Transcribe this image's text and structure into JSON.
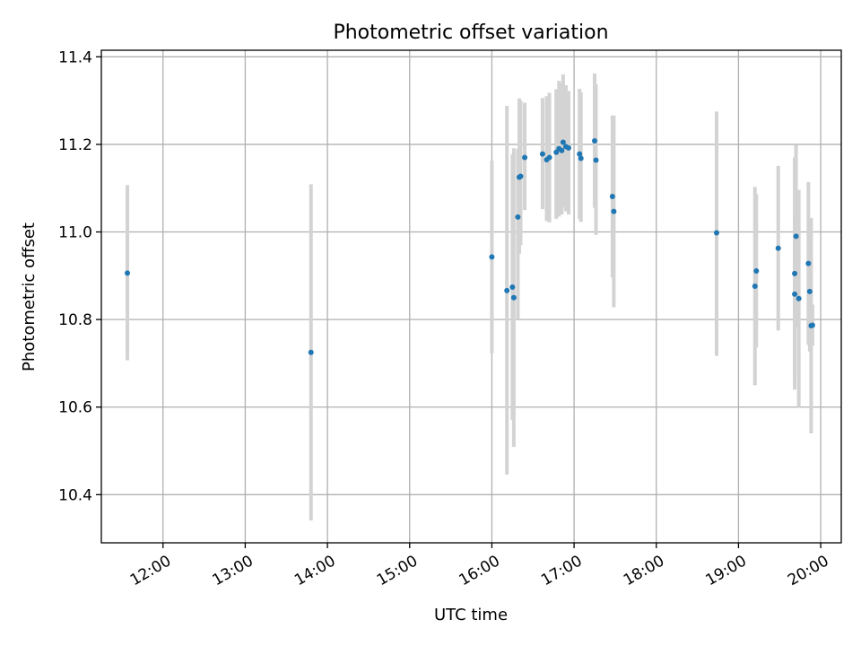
{
  "chart_data": {
    "type": "scatter",
    "title": "Photometric offset variation",
    "xlabel": "UTC time",
    "ylabel": "Photometric offset",
    "x_axis": {
      "kind": "time",
      "range": [
        "11:15",
        "20:15"
      ],
      "ticks": [
        "12:00",
        "13:00",
        "14:00",
        "15:00",
        "16:00",
        "17:00",
        "18:00",
        "19:00",
        "20:00"
      ]
    },
    "y_axis": {
      "range": [
        10.29,
        11.415
      ],
      "ticks": [
        10.4,
        10.6,
        10.8,
        11.0,
        11.2,
        11.4
      ],
      "tick_labels": [
        "10.4",
        "10.6",
        "10.8",
        "11.0",
        "11.2",
        "11.4"
      ]
    },
    "grid": true,
    "colors": {
      "marker": "#1f77b4",
      "errorbar": "#d3d3d3"
    },
    "series": [
      {
        "points": [
          {
            "t": "11:34",
            "y": 10.906,
            "lo": 10.707,
            "hi": 11.107
          },
          {
            "t": "13:48",
            "y": 10.725,
            "lo": 10.341,
            "hi": 11.109
          },
          {
            "t": "16:00",
            "y": 10.943,
            "lo": 10.723,
            "hi": 11.163
          },
          {
            "t": "16:11",
            "y": 10.866,
            "lo": 10.446,
            "hi": 11.288
          },
          {
            "t": "16:15",
            "y": 10.874,
            "lo": 10.571,
            "hi": 11.177
          },
          {
            "t": "16:16",
            "y": 10.85,
            "lo": 10.509,
            "hi": 11.191
          },
          {
            "t": "16:19",
            "y": 11.034,
            "lo": 10.8,
            "hi": 11.19
          },
          {
            "t": "16:20",
            "y": 11.125,
            "lo": 10.95,
            "hi": 11.305
          },
          {
            "t": "16:21",
            "y": 11.127,
            "lo": 10.97,
            "hi": 11.3
          },
          {
            "t": "16:24",
            "y": 11.17,
            "lo": 11.05,
            "hi": 11.295
          },
          {
            "t": "16:37",
            "y": 11.178,
            "lo": 11.052,
            "hi": 11.306
          },
          {
            "t": "16:40",
            "y": 11.165,
            "lo": 11.025,
            "hi": 11.31
          },
          {
            "t": "16:42",
            "y": 11.17,
            "lo": 11.022,
            "hi": 11.318
          },
          {
            "t": "16:47",
            "y": 11.182,
            "lo": 11.03,
            "hi": 11.326
          },
          {
            "t": "16:49",
            "y": 11.19,
            "lo": 11.035,
            "hi": 11.345
          },
          {
            "t": "16:51",
            "y": 11.186,
            "lo": 11.04,
            "hi": 11.34
          },
          {
            "t": "16:52",
            "y": 11.205,
            "lo": 11.058,
            "hi": 11.36
          },
          {
            "t": "16:54",
            "y": 11.195,
            "lo": 11.047,
            "hi": 11.335
          },
          {
            "t": "16:56",
            "y": 11.192,
            "lo": 11.04,
            "hi": 11.322
          },
          {
            "t": "17:04",
            "y": 11.178,
            "lo": 11.03,
            "hi": 11.327
          },
          {
            "t": "17:05",
            "y": 11.168,
            "lo": 11.023,
            "hi": 11.319
          },
          {
            "t": "17:15",
            "y": 11.208,
            "lo": 11.055,
            "hi": 11.362
          },
          {
            "t": "17:16",
            "y": 11.164,
            "lo": 10.993,
            "hi": 11.337
          },
          {
            "t": "17:28",
            "y": 11.081,
            "lo": 10.896,
            "hi": 11.266
          },
          {
            "t": "17:29",
            "y": 11.047,
            "lo": 10.828,
            "hi": 11.266
          },
          {
            "t": "18:44",
            "y": 10.998,
            "lo": 10.717,
            "hi": 11.275
          },
          {
            "t": "19:12",
            "y": 10.876,
            "lo": 10.65,
            "hi": 11.103
          },
          {
            "t": "19:13",
            "y": 10.911,
            "lo": 10.736,
            "hi": 11.086
          },
          {
            "t": "19:29",
            "y": 10.963,
            "lo": 10.775,
            "hi": 11.151
          },
          {
            "t": "19:41",
            "y": 10.905,
            "lo": 10.64,
            "hi": 11.17
          },
          {
            "t": "19:41",
            "y": 10.858,
            "lo": 10.673,
            "hi": 11.043
          },
          {
            "t": "19:42",
            "y": 10.99,
            "lo": 10.782,
            "hi": 11.198
          },
          {
            "t": "19:44",
            "y": 10.848,
            "lo": 10.6,
            "hi": 11.096
          },
          {
            "t": "19:51",
            "y": 10.928,
            "lo": 10.742,
            "hi": 11.114
          },
          {
            "t": "19:52",
            "y": 10.864,
            "lo": 10.727,
            "hi": 11.001
          },
          {
            "t": "19:53",
            "y": 10.786,
            "lo": 10.54,
            "hi": 11.032
          },
          {
            "t": "19:54",
            "y": 10.787,
            "lo": 10.74,
            "hi": 10.834
          }
        ]
      }
    ]
  }
}
